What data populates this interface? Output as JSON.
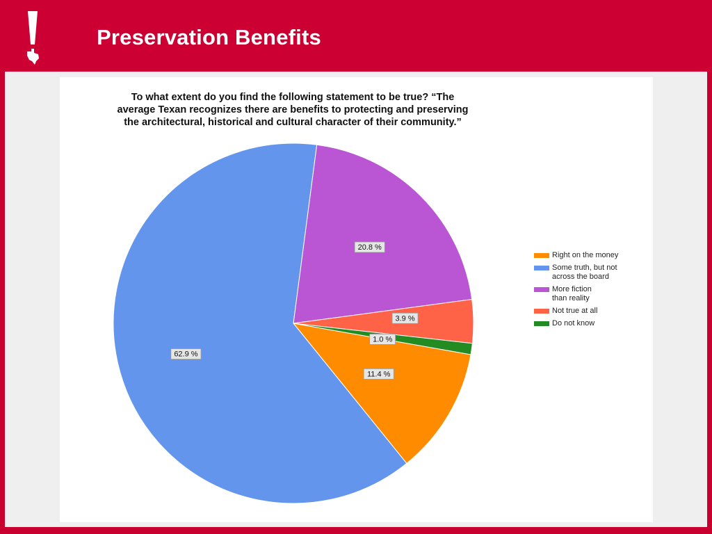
{
  "slide": {
    "title": "Preservation Benefits",
    "brand_color": "#cc0033"
  },
  "chart_data": {
    "type": "pie",
    "title_lines": [
      "To what extent do you find the following statement to be true? “The",
      "average Texan recognizes there are benefits to protecting and preserving",
      "the architectural, historical and cultural character of their community.”"
    ],
    "slices": [
      {
        "label": "Right on the money",
        "value": 11.4,
        "value_label": "11.4 %",
        "color": "#ff8c00"
      },
      {
        "label": "Some truth, but not\nacross the board",
        "value": 62.9,
        "value_label": "62.9 %",
        "color": "#6495ed"
      },
      {
        "label": "More fiction\nthan reality",
        "value": 20.8,
        "value_label": "20.8 %",
        "color": "#ba55d3"
      },
      {
        "label": "Not true at all",
        "value": 3.9,
        "value_label": "3.9 %",
        "color": "#ff6347"
      },
      {
        "label": "Do not know",
        "value": 1.0,
        "value_label": "1.0 %",
        "color": "#228b22"
      }
    ],
    "legend_position": "right"
  }
}
